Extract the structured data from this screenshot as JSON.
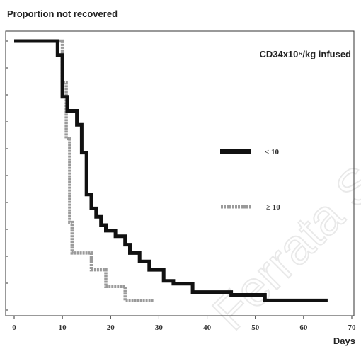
{
  "chart_data": {
    "type": "line",
    "y_title": "Proportion not recovered",
    "xlabel": "Days",
    "legend_title": "CD34x10⁶/kg infused",
    "xlim": [
      0,
      70
    ],
    "ylim": [
      0,
      1
    ],
    "x_ticks": [
      0,
      10,
      20,
      30,
      40,
      50,
      60,
      70
    ],
    "x_tick_labels": [
      "0",
      "10",
      "20",
      "30",
      "40",
      "50",
      "60",
      "70"
    ],
    "series": [
      {
        "name": "< 10",
        "color": "#111111",
        "style": "solid",
        "x": [
          0,
          9,
          9,
          10,
          10,
          11,
          11,
          13,
          13,
          14,
          14,
          15,
          15,
          16,
          16,
          17,
          17,
          18,
          18,
          19,
          19,
          21,
          21,
          23,
          23,
          24,
          24,
          26,
          26,
          28,
          28,
          31,
          31,
          33,
          33,
          37,
          37,
          45,
          45,
          52,
          52,
          65
        ],
        "y": [
          1.0,
          1.0,
          0.95,
          0.95,
          0.8,
          0.8,
          0.75,
          0.75,
          0.7,
          0.7,
          0.6,
          0.6,
          0.45,
          0.45,
          0.4,
          0.4,
          0.37,
          0.37,
          0.34,
          0.34,
          0.32,
          0.32,
          0.3,
          0.3,
          0.27,
          0.27,
          0.24,
          0.24,
          0.21,
          0.21,
          0.18,
          0.18,
          0.14,
          0.14,
          0.13,
          0.13,
          0.1,
          0.1,
          0.09,
          0.09,
          0.07,
          0.07
        ]
      },
      {
        "name": "≥ 10",
        "color": "#9a9a9a",
        "style": "hatched",
        "x": [
          0,
          10,
          10,
          10.8,
          10.8,
          11.5,
          11.5,
          12,
          12,
          16,
          16,
          19,
          19,
          23,
          23,
          29
        ],
        "y": [
          1.0,
          1.0,
          0.85,
          0.85,
          0.65,
          0.65,
          0.35,
          0.35,
          0.24,
          0.24,
          0.18,
          0.18,
          0.12,
          0.12,
          0.07,
          0.07
        ]
      }
    ],
    "legend_position": "right, inside plot"
  },
  "watermark_text": "Ferrata S"
}
